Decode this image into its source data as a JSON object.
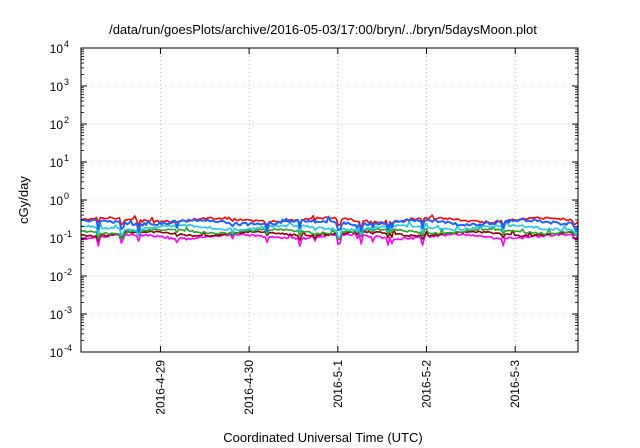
{
  "chart_data": {
    "type": "line",
    "title": "/data/run/goesPlots/archive/2016-05-03/17:00/bryn/../bryn/5daysMoon.plot",
    "xlabel": "Coordinated Universal Time (UTC)",
    "ylabel": "cGy/day",
    "yscale": "log",
    "ylim": [
      0.0001,
      10000
    ],
    "xlim": [
      "2016-04-28 02:30",
      "2016-05-03 17:00"
    ],
    "x_tick_labels": [
      "2016-4-29",
      "2016-4-30",
      "2016-5-1",
      "2016-5-2",
      "2016-5-3"
    ],
    "y_tick_labels": [
      {
        "base": "10",
        "exp": "4"
      },
      {
        "base": "10",
        "exp": "3"
      },
      {
        "base": "10",
        "exp": "2"
      },
      {
        "base": "10",
        "exp": "1"
      },
      {
        "base": "10",
        "exp": "0"
      },
      {
        "base": "10",
        "exp": "-1"
      },
      {
        "base": "10",
        "exp": "-2"
      },
      {
        "base": "10",
        "exp": "-3"
      },
      {
        "base": "10",
        "exp": "-4"
      }
    ],
    "grid": true,
    "legend": "none",
    "series": [
      {
        "color": "#ff0000",
        "baseline": 0.3,
        "dip_depth": 0.35,
        "noise": 0.08
      },
      {
        "color": "#1e64ff",
        "baseline": 0.26,
        "dip_depth": 0.45,
        "noise": 0.09
      },
      {
        "color": "#20c8e6",
        "baseline": 0.19,
        "dip_depth": 0.4,
        "noise": 0.07
      },
      {
        "color": "#2ea02e",
        "baseline": 0.15,
        "dip_depth": 0.35,
        "noise": 0.06
      },
      {
        "color": "#8b0000",
        "baseline": 0.13,
        "dip_depth": 0.3,
        "noise": 0.05
      },
      {
        "color": "#ff00ff",
        "baseline": 0.11,
        "dip_depth": 0.5,
        "noise": 0.07
      }
    ]
  }
}
